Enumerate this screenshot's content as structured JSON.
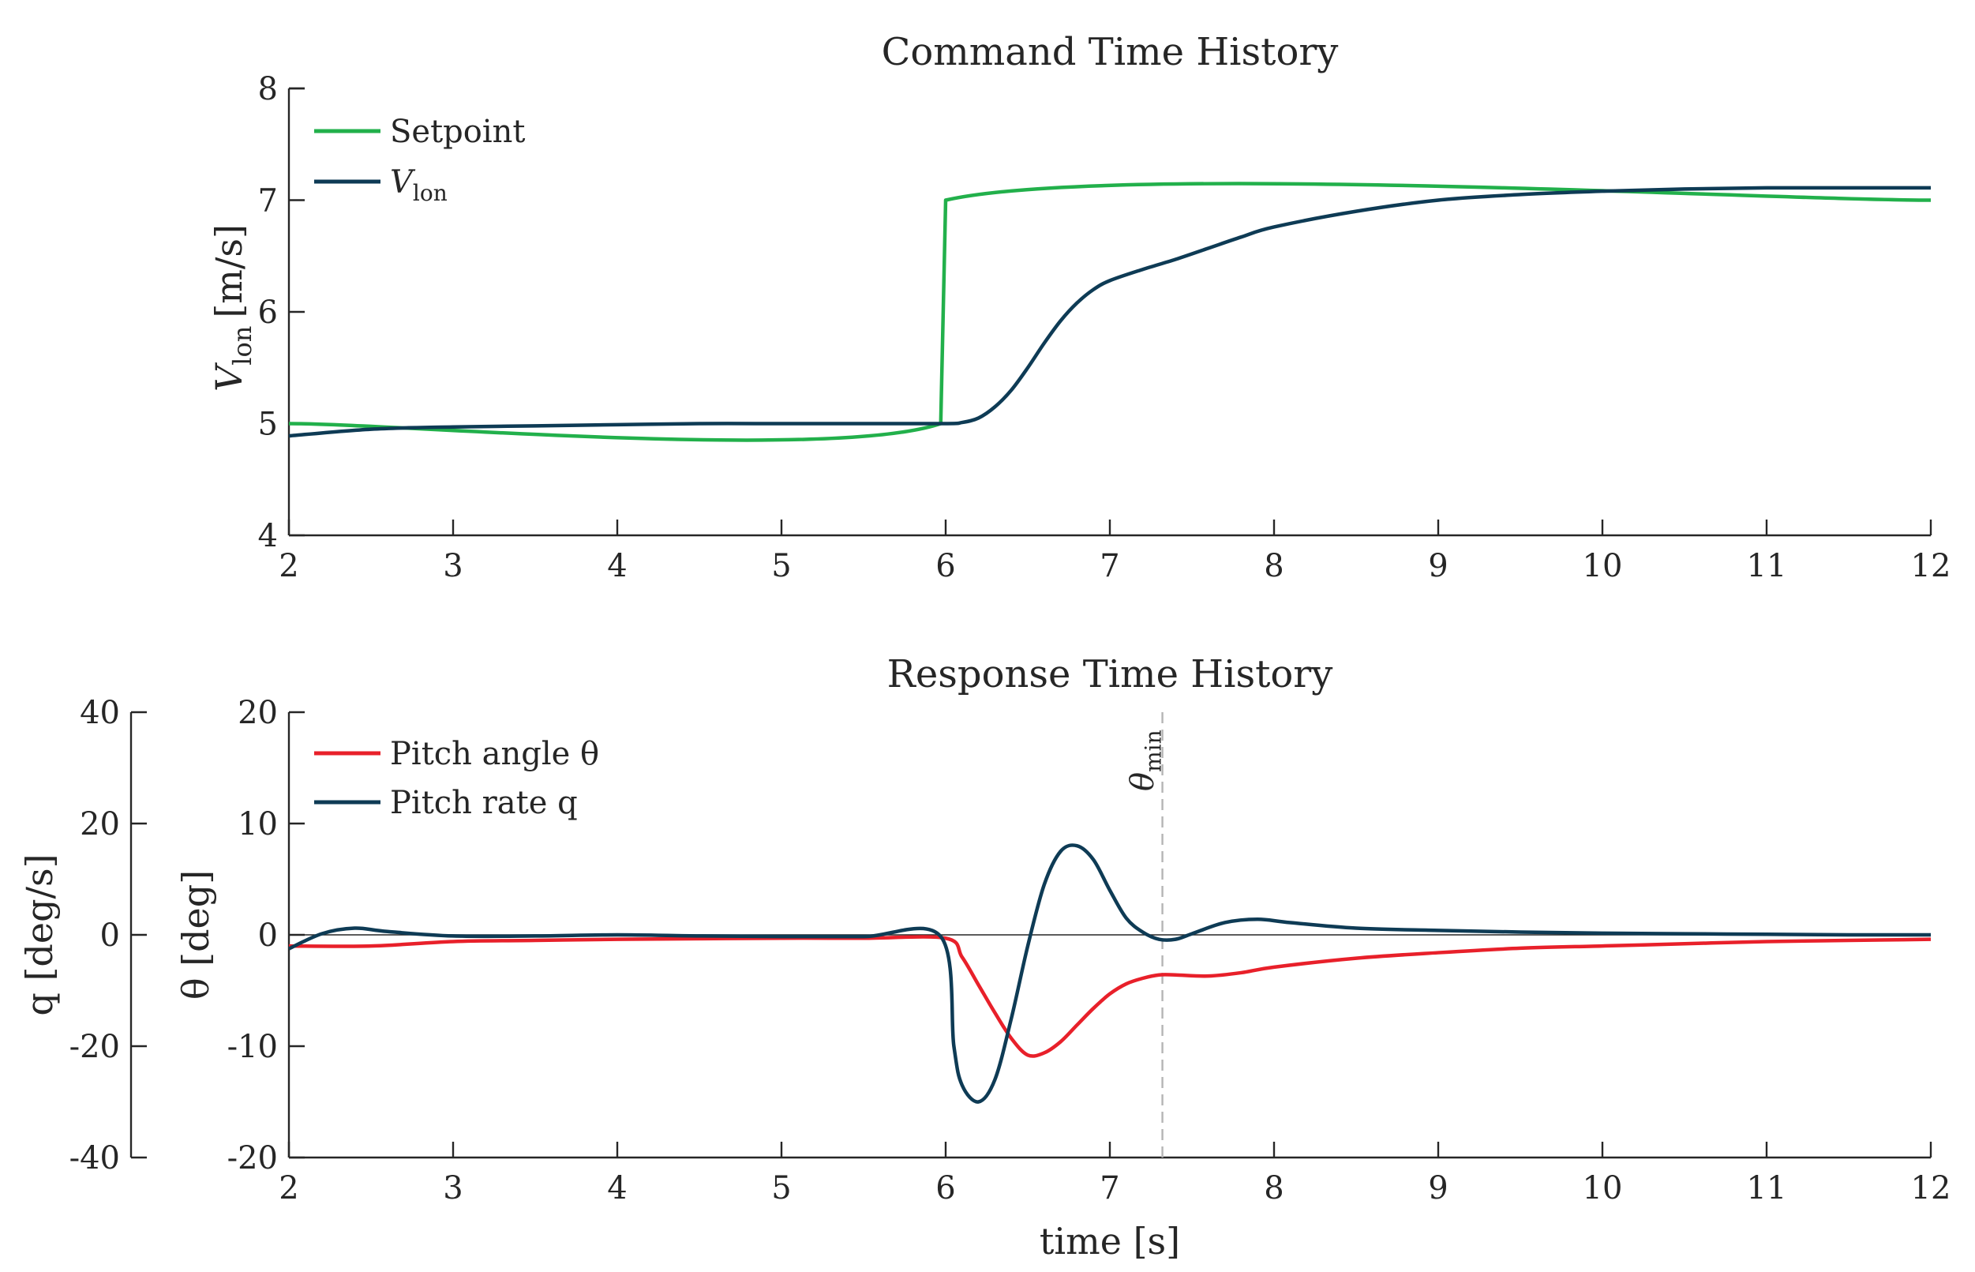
{
  "chart_data": [
    {
      "type": "line",
      "title": "Command Time History",
      "xlabel": "",
      "ylabel": "V",
      "ylabel_sub": "lon",
      "ylabel_unit": "[m/s]",
      "xlim": [
        2,
        12
      ],
      "ylim": [
        4,
        8
      ],
      "xticks": [
        2,
        3,
        4,
        5,
        6,
        7,
        8,
        9,
        10,
        11,
        12
      ],
      "yticks": [
        4,
        5,
        6,
        7,
        8
      ],
      "grid": false,
      "legend_position": "top-left",
      "series": [
        {
          "name": "Setpoint",
          "color": "#22b04b",
          "x": [
            2,
            5.97,
            6.0,
            12
          ],
          "y": [
            5,
            5,
            7,
            7
          ]
        },
        {
          "name": "V",
          "name_sub": "lon",
          "color": "#0e3b55",
          "x": [
            2,
            2.5,
            3,
            3.5,
            4,
            4.5,
            5,
            5.5,
            6,
            6.1,
            6.2,
            6.3,
            6.4,
            6.5,
            6.6,
            6.7,
            6.8,
            6.9,
            7,
            7.2,
            7.4,
            7.6,
            7.8,
            8,
            8.5,
            9,
            9.5,
            10,
            10.5,
            11,
            11.5,
            12
          ],
          "y": [
            4.89,
            4.95,
            4.97,
            4.98,
            4.99,
            5.0,
            5.0,
            5.0,
            5.0,
            5.01,
            5.05,
            5.15,
            5.3,
            5.5,
            5.72,
            5.92,
            6.08,
            6.2,
            6.28,
            6.38,
            6.47,
            6.57,
            6.67,
            6.76,
            6.9,
            7.0,
            7.05,
            7.08,
            7.1,
            7.11,
            7.11,
            7.11
          ]
        }
      ]
    },
    {
      "type": "line",
      "title": "Response Time History",
      "xlabel": "time [s]",
      "ylabel": "θ [deg]",
      "ylabel_right_axis": "q [deg/s]",
      "xlim": [
        2,
        12
      ],
      "ylim": [
        -20,
        20
      ],
      "ylim_secondary": [
        -40,
        40
      ],
      "xticks": [
        2,
        3,
        4,
        5,
        6,
        7,
        8,
        9,
        10,
        11,
        12
      ],
      "yticks": [
        -20,
        -10,
        0,
        10,
        20
      ],
      "yticks_secondary": [
        -40,
        -20,
        0,
        20,
        40
      ],
      "grid": false,
      "legend_position": "top-left",
      "annotation": {
        "text": "θ",
        "sub": "min",
        "x": 7.32
      },
      "series": [
        {
          "name": "Pitch angle θ",
          "color": "#e8202a",
          "axis": "theta",
          "x": [
            2,
            2.5,
            3,
            3.5,
            4,
            4.5,
            5,
            5.5,
            6,
            6.1,
            6.2,
            6.3,
            6.4,
            6.5,
            6.6,
            6.7,
            6.8,
            6.9,
            7,
            7.1,
            7.2,
            7.3,
            7.4,
            7.6,
            7.8,
            8,
            8.5,
            9,
            9.5,
            10,
            10.5,
            11,
            11.5,
            12
          ],
          "y": [
            -1.0,
            -1.0,
            -0.6,
            -0.5,
            -0.4,
            -0.35,
            -0.3,
            -0.3,
            -0.3,
            -2.0,
            -4.5,
            -7.0,
            -9.3,
            -10.8,
            -10.6,
            -9.6,
            -8.1,
            -6.6,
            -5.3,
            -4.4,
            -3.9,
            -3.6,
            -3.6,
            -3.7,
            -3.4,
            -2.9,
            -2.1,
            -1.6,
            -1.2,
            -1.0,
            -0.8,
            -0.6,
            -0.5,
            -0.4
          ]
        },
        {
          "name": "Pitch rate q",
          "color": "#0e3b55",
          "axis": "q",
          "x": [
            2,
            2.2,
            2.4,
            2.6,
            3,
            3.5,
            4,
            4.5,
            5,
            5.5,
            5.97,
            6.05,
            6.1,
            6.2,
            6.3,
            6.4,
            6.5,
            6.6,
            6.7,
            6.8,
            6.9,
            7,
            7.1,
            7.2,
            7.3,
            7.4,
            7.5,
            7.7,
            7.9,
            8.1,
            8.5,
            9,
            9.5,
            10,
            10.5,
            11,
            11.5,
            12
          ],
          "y": [
            -2.5,
            0.2,
            1.2,
            0.6,
            -0.2,
            -0.2,
            0,
            -0.2,
            -0.3,
            -0.3,
            -0.3,
            -20,
            -27,
            -30,
            -26,
            -15,
            -2,
            9,
            15,
            16,
            13.5,
            8,
            3,
            0.5,
            -0.8,
            -0.8,
            0.2,
            2.2,
            2.8,
            2.2,
            1.2,
            0.8,
            0.5,
            0.3,
            0.2,
            0.1,
            0.0,
            0.0
          ]
        }
      ]
    }
  ]
}
